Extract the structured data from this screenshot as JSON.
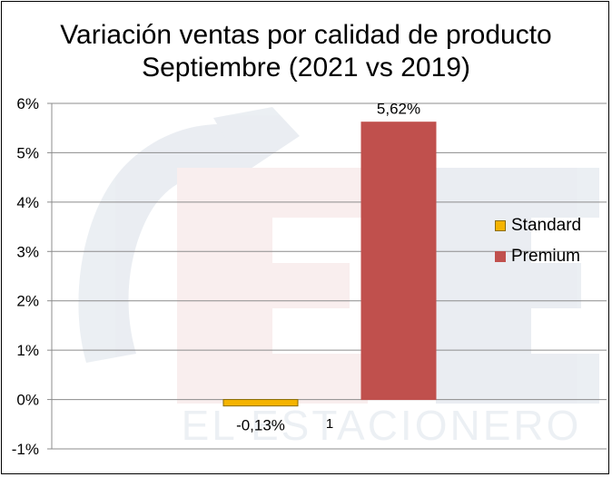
{
  "chart_data": {
    "type": "bar",
    "title": "Variación ventas por calidad de producto",
    "subtitle": "Septiembre (2021 vs 2019)",
    "categories": [
      "1"
    ],
    "series": [
      {
        "name": "Standard",
        "values": [
          -0.13
        ],
        "label": "-0,13%",
        "color": "#F5B400",
        "border": "#8C6D00"
      },
      {
        "name": "Premium",
        "values": [
          5.62
        ],
        "label": "5,62%",
        "color": "#C0504D",
        "border": "#C0504D"
      }
    ],
    "ylim": [
      -1,
      6
    ],
    "yticks": [
      "-1%",
      "0%",
      "1%",
      "2%",
      "3%",
      "4%",
      "5%",
      "6%"
    ],
    "grid": true,
    "legend": "right"
  },
  "watermark": {
    "text": "EL ESTACIONERO"
  }
}
